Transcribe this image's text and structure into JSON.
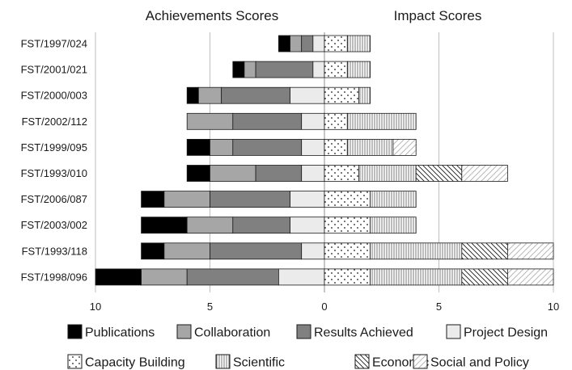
{
  "chart_data": {
    "type": "bar",
    "orientation": "horizontal",
    "stacked": true,
    "diverging": true,
    "panel_titles": {
      "left": "Achievements Scores",
      "right": "Impact Scores"
    },
    "categories": [
      "FST/1997/024",
      "FST/2001/021",
      "FST/2000/003",
      "FST/2002/112",
      "FST/1999/095",
      "FST/1993/010",
      "FST/2006/087",
      "FST/2003/002",
      "FST/1993/118",
      "FST/1998/096"
    ],
    "x_ticks": [
      {
        "value": -10,
        "label": "10"
      },
      {
        "value": -5,
        "label": "5"
      },
      {
        "value": 0,
        "label": "0"
      },
      {
        "value": 5,
        "label": "5"
      },
      {
        "value": 10,
        "label": "10"
      }
    ],
    "xlim": [
      -10,
      10
    ],
    "grid": true,
    "legend_position": "bottom",
    "achievements": {
      "series": [
        {
          "name": "Publications",
          "key": "publications",
          "values": [
            0.5,
            0.5,
            0.5,
            0,
            1,
            1,
            1,
            2,
            1,
            2
          ]
        },
        {
          "name": "Collaboration",
          "key": "collaboration",
          "values": [
            0.5,
            0.5,
            1,
            2,
            1,
            2,
            2,
            2,
            2,
            2
          ]
        },
        {
          "name": "Results Achieved",
          "key": "results",
          "values": [
            0.5,
            2.5,
            3,
            3,
            3,
            2,
            3.5,
            2.5,
            4,
            4
          ]
        },
        {
          "name": "Project Design",
          "key": "design",
          "values": [
            0.5,
            0.5,
            1.5,
            1,
            1,
            1,
            1.5,
            1.5,
            1,
            2
          ]
        }
      ]
    },
    "impact": {
      "series": [
        {
          "name": "Capacity Building",
          "key": "capacity",
          "values": [
            1,
            1,
            1.5,
            1,
            1,
            1.5,
            2,
            2,
            2,
            2
          ]
        },
        {
          "name": "Scientific",
          "key": "scientific",
          "values": [
            1,
            1,
            0.5,
            3,
            2,
            2.5,
            2,
            2,
            4,
            4
          ]
        },
        {
          "name": "Economic",
          "key": "economic",
          "values": [
            0,
            0,
            0,
            0,
            0,
            2,
            0,
            0,
            2,
            2
          ]
        },
        {
          "name": "Social and Policy",
          "key": "social",
          "values": [
            0,
            0,
            0,
            0,
            1,
            2,
            0,
            0,
            2,
            2
          ]
        }
      ]
    },
    "colors": {
      "publications": "#000000",
      "collaboration": "#a6a6a6",
      "results": "#808080",
      "design": "#ebebeb",
      "capacity": "#ffffff",
      "scientific": "#ffffff",
      "economic": "#ffffff",
      "social": "#ffffff",
      "outline": "#1a1a1a",
      "grid": "#bfbfbf"
    },
    "legend": [
      {
        "key": "publications",
        "label": "Publications"
      },
      {
        "key": "collaboration",
        "label": "Collaboration"
      },
      {
        "key": "results",
        "label": "Results Achieved"
      },
      {
        "key": "design",
        "label": "Project Design"
      },
      {
        "key": "capacity",
        "label": "Capacity Building"
      },
      {
        "key": "scientific",
        "label": "Scientific"
      },
      {
        "key": "economic",
        "label": "Economic"
      },
      {
        "key": "social",
        "label": "Social and Policy"
      }
    ]
  }
}
